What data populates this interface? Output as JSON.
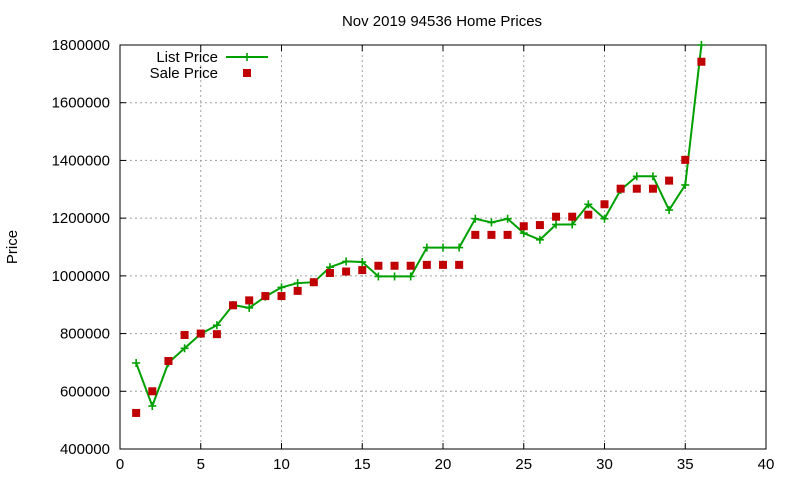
{
  "chart_data": {
    "type": "line",
    "title": "Nov 2019 94536 Home Prices",
    "xlabel": "",
    "ylabel": "Price",
    "xlim": [
      0,
      40
    ],
    "ylim": [
      400000,
      1800000
    ],
    "xticks": [
      0,
      5,
      10,
      15,
      20,
      25,
      30,
      35,
      40
    ],
    "yticks": [
      400000,
      600000,
      800000,
      1000000,
      1200000,
      1400000,
      1600000,
      1800000
    ],
    "grid": true,
    "legend_position": "top-left",
    "x": [
      1,
      2,
      3,
      4,
      5,
      6,
      7,
      8,
      9,
      10,
      11,
      12,
      13,
      14,
      15,
      16,
      17,
      18,
      19,
      20,
      21,
      22,
      23,
      24,
      25,
      26,
      27,
      28,
      29,
      30,
      31,
      32,
      33,
      34,
      35,
      36
    ],
    "series": [
      {
        "name": "List Price",
        "style": "line-cross",
        "color": "#00a000",
        "values": [
          698000,
          549000,
          699000,
          749000,
          799000,
          829000,
          899000,
          889000,
          928000,
          960000,
          975000,
          978000,
          1030000,
          1050000,
          1048000,
          998000,
          998000,
          998000,
          1098000,
          1098000,
          1098000,
          1198000,
          1185000,
          1198000,
          1148000,
          1125000,
          1178000,
          1178000,
          1248000,
          1198000,
          1298000,
          1345000,
          1345000,
          1228000,
          1315000,
          1800000
        ]
      },
      {
        "name": "Sale Price",
        "style": "square",
        "color": "#c00000",
        "values": [
          525000,
          600000,
          705000,
          795000,
          800000,
          798000,
          898000,
          915000,
          930000,
          930000,
          948000,
          978000,
          1010000,
          1015000,
          1020000,
          1035000,
          1035000,
          1035000,
          1038000,
          1038000,
          1038000,
          1142000,
          1142000,
          1142000,
          1172000,
          1176000,
          1205000,
          1205000,
          1212000,
          1248000,
          1302000,
          1302000,
          1302000,
          1330000,
          1402000,
          1742000
        ]
      }
    ]
  }
}
